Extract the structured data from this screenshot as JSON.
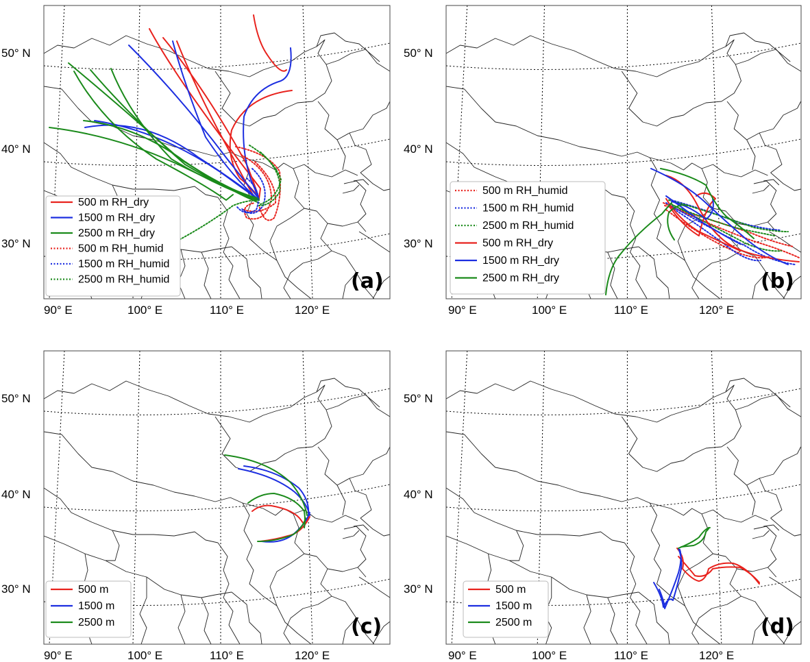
{
  "axis_labels": {
    "lat": [
      "50° N",
      "40° N",
      "30° N"
    ],
    "lon": [
      "90° E",
      "100° E",
      "110° E",
      "120° E"
    ]
  },
  "panels": [
    {
      "id": "a",
      "label": "(a)",
      "legend": [
        {
          "text": "500  m RH_dry",
          "color": "#e8221d",
          "style": "solid"
        },
        {
          "text": "1500  m RH_dry",
          "color": "#1c2ee0",
          "style": "solid"
        },
        {
          "text": "2500  m RH_dry",
          "color": "#1a8a1a",
          "style": "solid"
        },
        {
          "text": "500  m RH_humid",
          "color": "#e8221d",
          "style": "dotted"
        },
        {
          "text": "1500  m RH_humid",
          "color": "#1c2ee0",
          "style": "dotted"
        },
        {
          "text": "2500  m RH_humid",
          "color": "#1a8a1a",
          "style": "dotted"
        }
      ]
    },
    {
      "id": "b",
      "label": "(b)",
      "legend": [
        {
          "text": "500  m RH_humid",
          "color": "#e8221d",
          "style": "dotted"
        },
        {
          "text": "1500  m RH_humid",
          "color": "#1c2ee0",
          "style": "dotted"
        },
        {
          "text": "2500  m RH_humid",
          "color": "#1a8a1a",
          "style": "dotted"
        },
        {
          "text": "500  m RH_dry",
          "color": "#e8221d",
          "style": "solid"
        },
        {
          "text": "1500  m RH_dry",
          "color": "#1c2ee0",
          "style": "solid"
        },
        {
          "text": "2500  m RH_dry",
          "color": "#1a8a1a",
          "style": "solid"
        }
      ]
    },
    {
      "id": "c",
      "label": "(c)",
      "legend": [
        {
          "text": "500  m",
          "color": "#e8221d",
          "style": "solid"
        },
        {
          "text": "1500  m",
          "color": "#1c2ee0",
          "style": "solid"
        },
        {
          "text": "2500  m",
          "color": "#1a8a1a",
          "style": "solid"
        }
      ]
    },
    {
      "id": "d",
      "label": "(d)",
      "legend": [
        {
          "text": "500  m",
          "color": "#e8221d",
          "style": "solid"
        },
        {
          "text": "1500  m",
          "color": "#1c2ee0",
          "style": "solid"
        },
        {
          "text": "2500  m",
          "color": "#1a8a1a",
          "style": "solid"
        }
      ]
    }
  ]
}
